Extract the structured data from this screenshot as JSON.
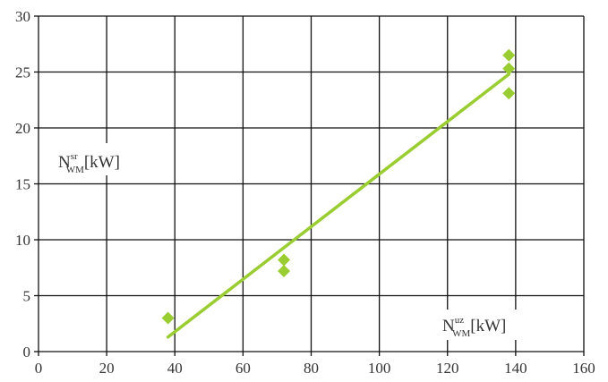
{
  "chart_data": {
    "type": "scatter",
    "x": [
      38,
      72,
      72,
      138,
      138,
      138
    ],
    "y": [
      3.0,
      8.2,
      7.2,
      26.5,
      25.3,
      23.1
    ],
    "trendline": {
      "x": [
        38,
        138
      ],
      "y": [
        1.3,
        24.8
      ]
    },
    "xlim": [
      0,
      160
    ],
    "ylim": [
      0,
      30
    ],
    "xticks": [
      "0",
      "20",
      "40",
      "60",
      "80",
      "100",
      "120",
      "140",
      "160"
    ],
    "yticks": [
      "0",
      "5",
      "10",
      "15",
      "20",
      "25",
      "30"
    ],
    "ylabel": {
      "main": "N",
      "sup": "sr",
      "sub": "WM",
      "unit": "[kW]"
    },
    "xlabel": {
      "main": "N",
      "sup": "uz",
      "sub": "WM",
      "unit": "[kW]"
    },
    "grid": true,
    "marker": "diamond",
    "colors": {
      "points": "#9acd32",
      "line": "#9acd32",
      "grid": "#111111"
    }
  }
}
